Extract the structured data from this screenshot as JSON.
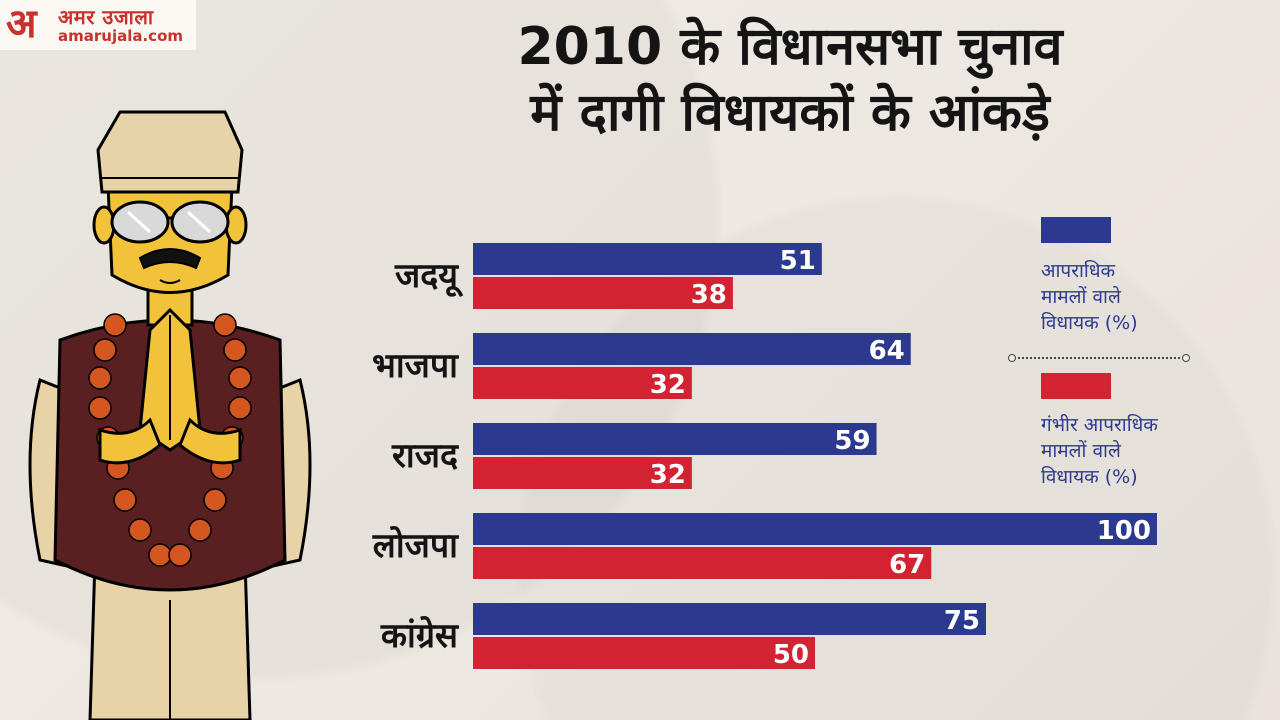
{
  "logo": {
    "glyph": "अ",
    "hindi": "अमर उजाला",
    "domain": "amarujala.com"
  },
  "title": {
    "line1": "2010 के विधानसभा चुनाव",
    "line2": "में दागी विधायकों के आंकड़े"
  },
  "chart_data": {
    "type": "bar",
    "orientation": "horizontal",
    "categories": [
      "जदयू",
      "भाजपा",
      "राजद",
      "लोजपा",
      "कांग्रेस"
    ],
    "series": [
      {
        "name": "आपराधिक मामलों वाले विधायक (%)",
        "color": "#2b3a8f",
        "values": [
          51,
          64,
          59,
          100,
          75
        ]
      },
      {
        "name": "गंभीर आपराधिक मामलों वाले विधायक (%)",
        "color": "#d32232",
        "values": [
          38,
          32,
          32,
          67,
          50
        ]
      }
    ],
    "xlim": [
      0,
      100
    ],
    "legend": "right",
    "grid": false
  },
  "legend": [
    {
      "label": "आपराधिक\nमामलों वाले\nविधायक (%)",
      "color": "#2b3a8f"
    },
    {
      "label": "गंभीर आपराधिक\nमामलों वाले\nविधायक (%)",
      "color": "#d32232"
    }
  ]
}
